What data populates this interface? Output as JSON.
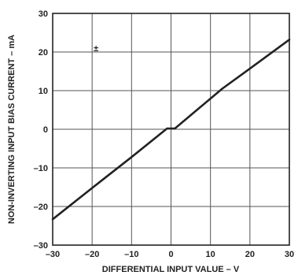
{
  "chart_data": {
    "type": "line",
    "title": "",
    "xlabel": "DIFFERENTIAL INPUT VALUE – V",
    "ylabel": "NON-INVERTING INPUT BIAS CURRENT – mA",
    "xlim": [
      -30,
      30
    ],
    "ylim": [
      -30,
      30
    ],
    "x_ticks": [
      -30,
      -20,
      -10,
      0,
      10,
      20,
      30
    ],
    "y_ticks": [
      -30,
      -20,
      -10,
      0,
      10,
      20,
      30
    ],
    "x_tick_labels": [
      "–30",
      "–20",
      "–10",
      "0",
      "10",
      "20",
      "30"
    ],
    "y_tick_labels": [
      "–30",
      "–20",
      "–10",
      "0",
      "10",
      "20",
      "30"
    ],
    "grid": true,
    "annotations": [
      {
        "text": "±",
        "x": -19,
        "y": 21
      }
    ],
    "series": [
      {
        "color": "#222222",
        "points": [
          [
            -30,
            -23.3
          ],
          [
            -20,
            -15.2
          ],
          [
            -10,
            -7.2
          ],
          [
            -1,
            0.2
          ],
          [
            1,
            0.2
          ],
          [
            13,
            10.5
          ],
          [
            20,
            15.7
          ],
          [
            30,
            23.2
          ]
        ]
      }
    ]
  }
}
